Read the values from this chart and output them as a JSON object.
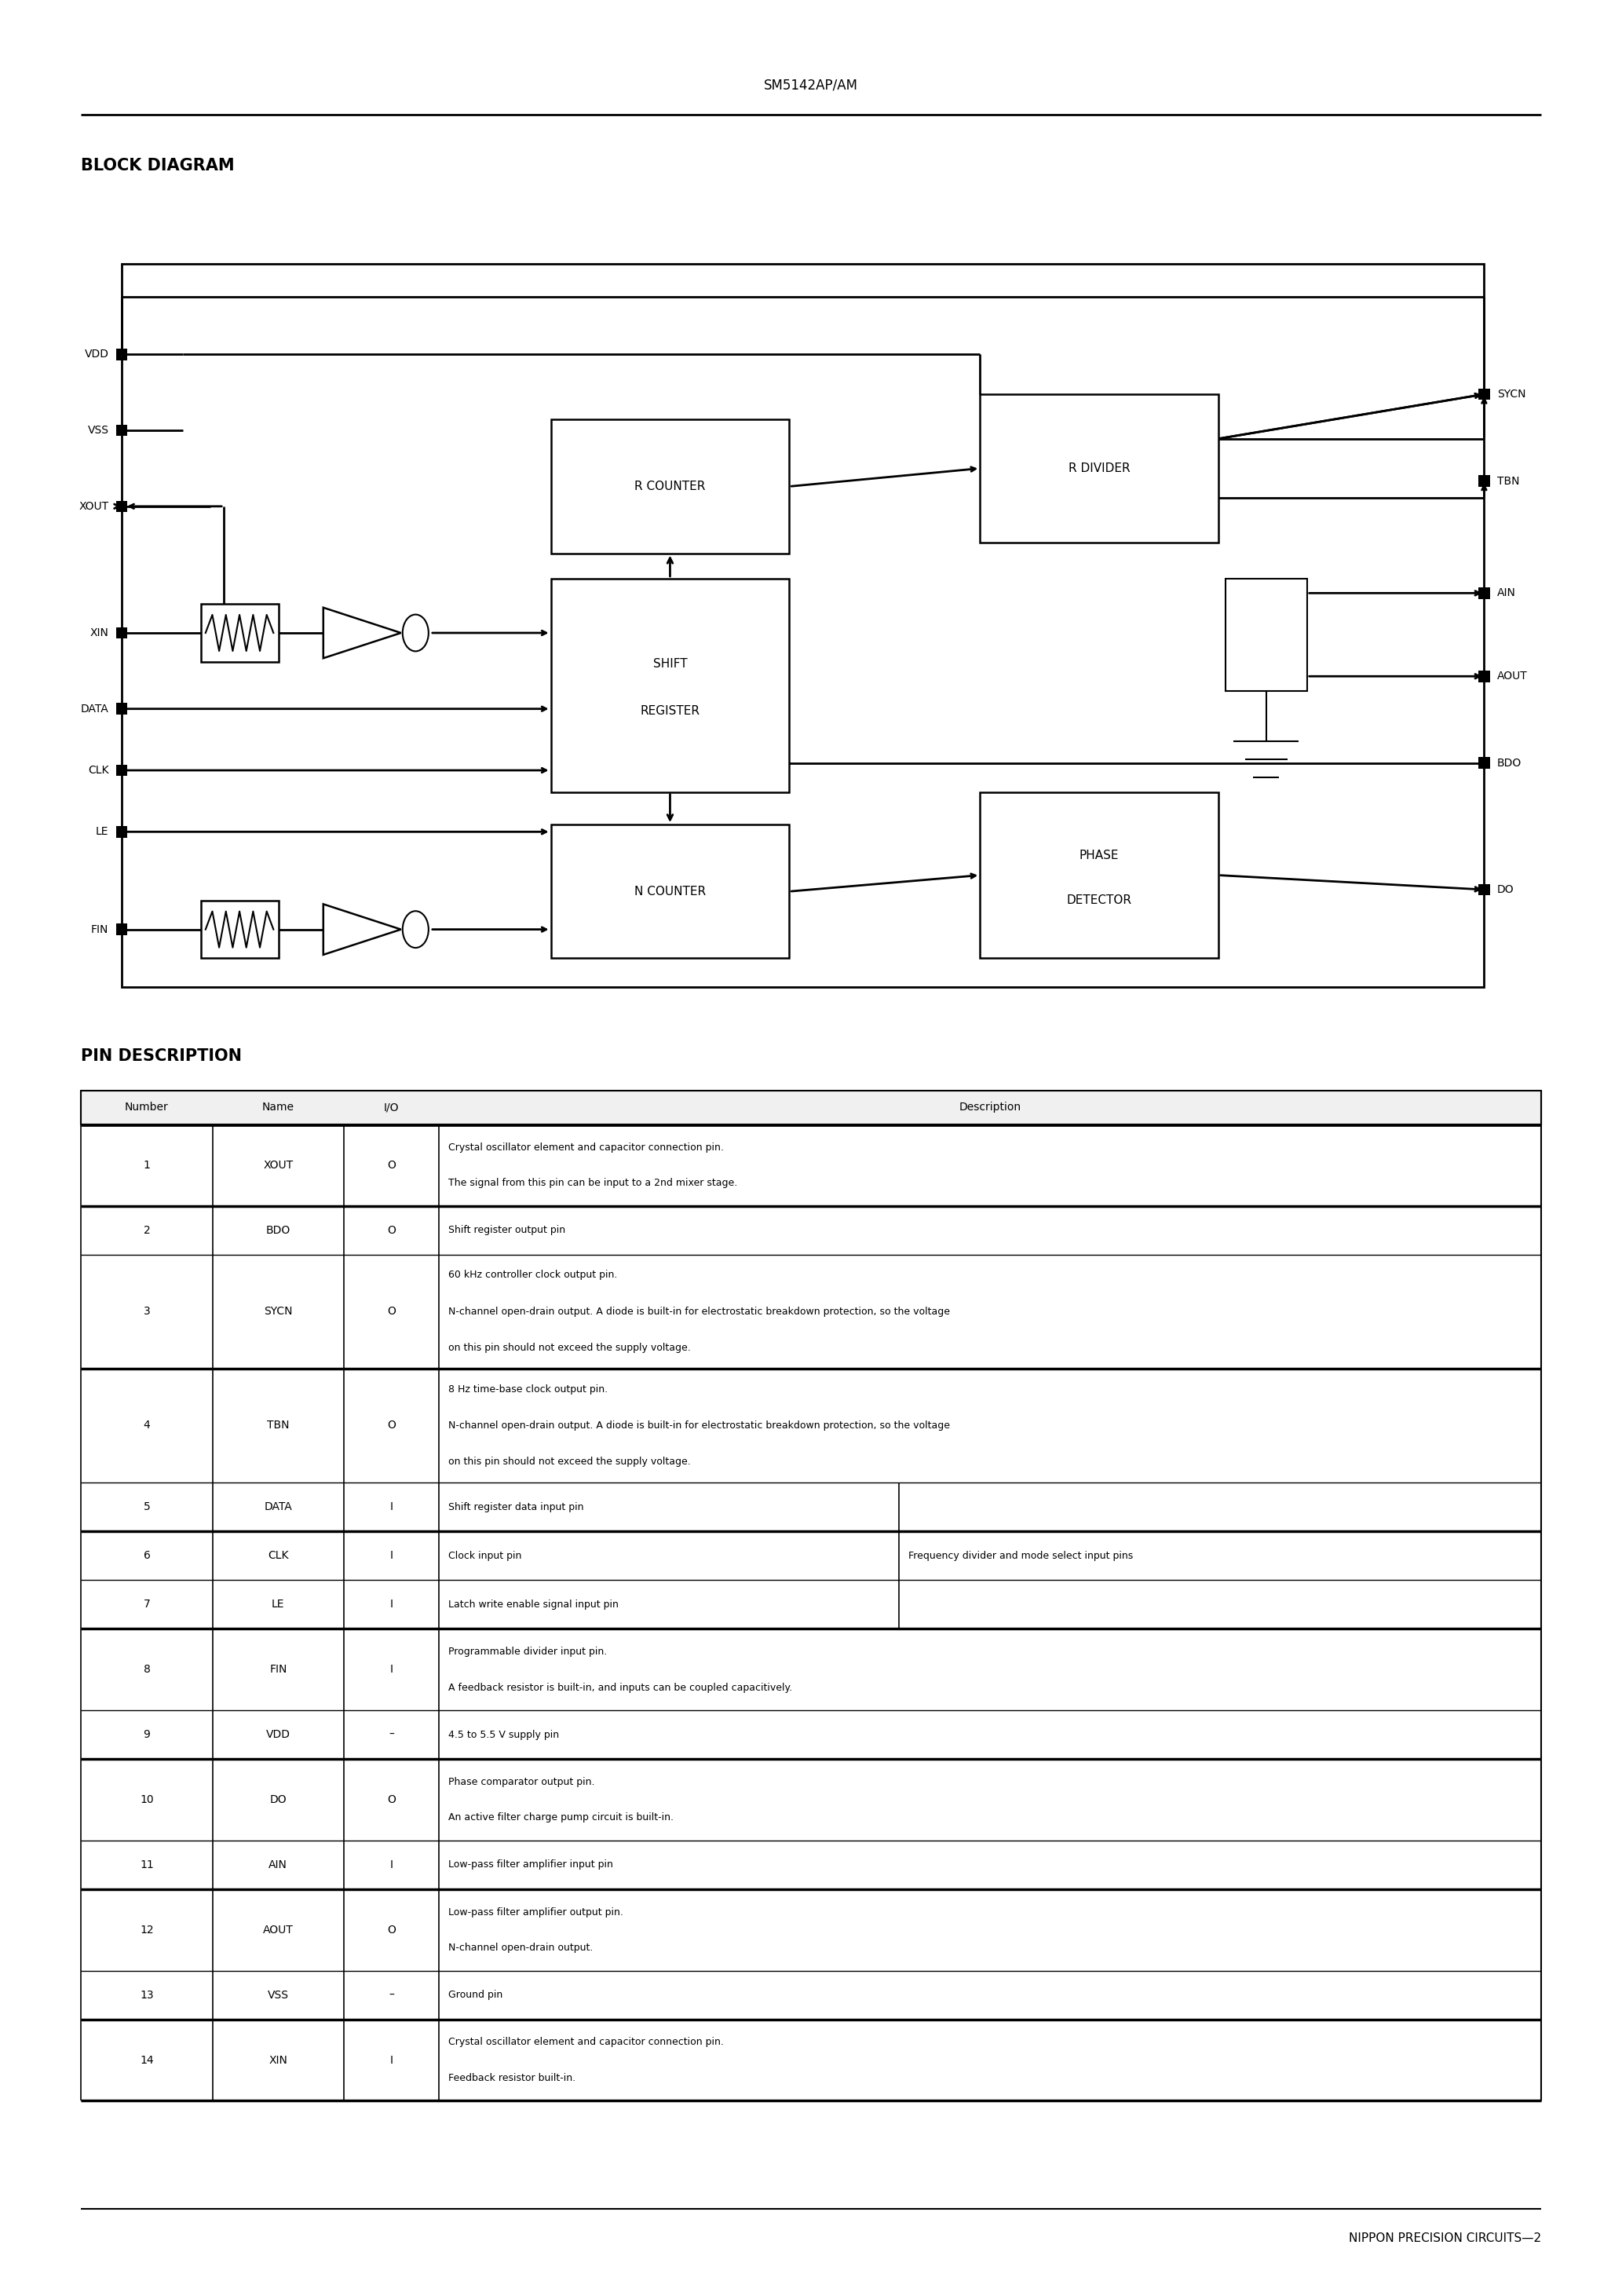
{
  "page_title": "SM5142AP/AM",
  "bg_color": "#ffffff",
  "section1_title": "BLOCK DIAGRAM",
  "section2_title": "PIN DESCRIPTION",
  "footer_text": "NIPPON PRECISION CIRCUITS—2",
  "pin_rows": [
    {
      "num": "1",
      "name": "XOUT",
      "io": "O",
      "lines": [
        "Crystal oscillator element and capacitor connection pin.",
        "The signal from this pin can be input to a 2nd mixer stage."
      ],
      "nlines": 2
    },
    {
      "num": "2",
      "name": "BDO",
      "io": "O",
      "lines": [
        "Shift register output pin"
      ],
      "nlines": 1
    },
    {
      "num": "3",
      "name": "SYCN",
      "io": "O",
      "lines": [
        "60 kHz controller clock output pin.",
        "N-channel open-drain output. A diode is built-in for electrostatic breakdown protection, so the voltage",
        "on this pin should not exceed the supply voltage."
      ],
      "nlines": 3
    },
    {
      "num": "4",
      "name": "TBN",
      "io": "O",
      "lines": [
        "8 Hz time-base clock output pin.",
        "N-channel open-drain output. A diode is built-in for electrostatic breakdown protection, so the voltage",
        "on this pin should not exceed the supply voltage."
      ],
      "nlines": 3
    },
    {
      "num": "5",
      "name": "DATA",
      "io": "I",
      "lines": [
        "Shift register data input pin"
      ],
      "nlines": 1,
      "side": ""
    },
    {
      "num": "6",
      "name": "CLK",
      "io": "I",
      "lines": [
        "Clock input pin"
      ],
      "nlines": 1,
      "side": "Frequency divider and mode select input pins"
    },
    {
      "num": "7",
      "name": "LE",
      "io": "I",
      "lines": [
        "Latch write enable signal input pin"
      ],
      "nlines": 1,
      "side": ""
    },
    {
      "num": "8",
      "name": "FIN",
      "io": "I",
      "lines": [
        "Programmable divider input pin.",
        "A feedback resistor is built-in, and inputs can be coupled capacitively."
      ],
      "nlines": 2
    },
    {
      "num": "9",
      "name": "VDD",
      "io": "–",
      "lines": [
        "4.5 to 5.5 V supply pin"
      ],
      "nlines": 1
    },
    {
      "num": "10",
      "name": "DO",
      "io": "O",
      "lines": [
        "Phase comparator output pin.",
        "An active filter charge pump circuit is built-in."
      ],
      "nlines": 2
    },
    {
      "num": "11",
      "name": "AIN",
      "io": "I",
      "lines": [
        "Low-pass filter amplifier input pin"
      ],
      "nlines": 1
    },
    {
      "num": "12",
      "name": "AOUT",
      "io": "O",
      "lines": [
        "Low-pass filter amplifier output pin.",
        "N-channel open-drain output."
      ],
      "nlines": 2
    },
    {
      "num": "13",
      "name": "VSS",
      "io": "–",
      "lines": [
        "Ground pin"
      ],
      "nlines": 1
    },
    {
      "num": "14",
      "name": "XIN",
      "io": "I",
      "lines": [
        "Crystal oscillator element and capacitor connection pin.",
        "Feedback resistor built-in."
      ],
      "nlines": 2
    }
  ]
}
